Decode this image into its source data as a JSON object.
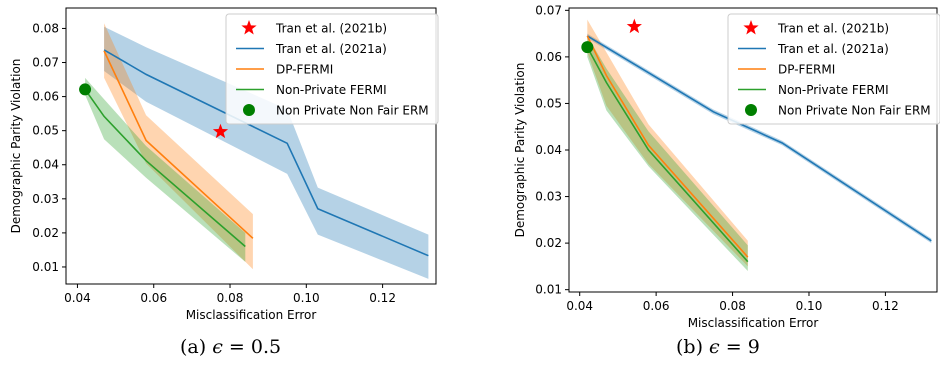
{
  "chart_data": [
    {
      "type": "line",
      "caption": {
        "label": "(a)",
        "param": "ϵ",
        "relation": "=",
        "value": "0.5"
      },
      "xlabel": "Misclassification Error",
      "ylabel": "Demographic Parity Violation",
      "xlim": [
        0.037,
        0.134
      ],
      "ylim": [
        0.005,
        0.086
      ],
      "xticks": [
        "0.04",
        "0.06",
        "0.08",
        "0.10",
        "0.12"
      ],
      "yticks": [
        "0.01",
        "0.02",
        "0.03",
        "0.04",
        "0.05",
        "0.06",
        "0.07",
        "0.08"
      ],
      "grid": false,
      "legend_position": "top-right",
      "series": [
        {
          "name": "Tran et al. (2021b)",
          "kind": "star",
          "color": "#ff0000",
          "x": [
            0.0775
          ],
          "y": [
            0.0497
          ]
        },
        {
          "name": "Tran et al. (2021a)",
          "kind": "line",
          "color": "#1f77b4",
          "x": [
            0.047,
            0.058,
            0.095,
            0.103,
            0.132
          ],
          "y": [
            0.0737,
            0.0665,
            0.0463,
            0.0271,
            0.0133
          ],
          "y_lower": [
            0.0675,
            0.0585,
            0.0373,
            0.0195,
            0.0065
          ],
          "y_upper": [
            0.0805,
            0.0745,
            0.0563,
            0.0333,
            0.0195
          ]
        },
        {
          "name": "DP-FERMI",
          "kind": "line",
          "color": "#ff7f0e",
          "x": [
            0.047,
            0.058,
            0.086
          ],
          "y": [
            0.0734,
            0.0471,
            0.0184
          ],
          "y_lower": [
            0.0655,
            0.0404,
            0.0093
          ],
          "y_upper": [
            0.0815,
            0.0545,
            0.0255
          ]
        },
        {
          "name": "Non-Private FERMI",
          "kind": "line",
          "color": "#2ca02c",
          "x": [
            0.042,
            0.047,
            0.058,
            0.084
          ],
          "y": [
            0.0621,
            0.0542,
            0.0412,
            0.016
          ],
          "y_lower": [
            0.0605,
            0.0475,
            0.0362,
            0.0115
          ],
          "y_upper": [
            0.0655,
            0.0592,
            0.0455,
            0.02
          ]
        },
        {
          "name": "Non Private Non Fair ERM",
          "kind": "dot",
          "color": "#007f00",
          "x": [
            0.042
          ],
          "y": [
            0.0621
          ]
        }
      ]
    },
    {
      "type": "line",
      "caption": {
        "label": "(b)",
        "param": "ϵ",
        "relation": "=",
        "value": "9"
      },
      "xlabel": "Misclassification Error",
      "ylabel": "Demographic Parity Violation",
      "xlim": [
        0.0372,
        0.1335
      ],
      "ylim": [
        0.0095,
        0.0705
      ],
      "xticks": [
        "0.04",
        "0.06",
        "0.08",
        "0.10",
        "0.12"
      ],
      "yticks": [
        "0.01",
        "0.02",
        "0.03",
        "0.04",
        "0.05",
        "0.06",
        "0.07"
      ],
      "grid": false,
      "legend_position": "top-right",
      "series": [
        {
          "name": "Tran et al. (2021b)",
          "kind": "star",
          "color": "#ff0000",
          "x": [
            0.0543
          ],
          "y": [
            0.0665
          ]
        },
        {
          "name": "Tran et al. (2021a)",
          "kind": "line",
          "color": "#1f77b4",
          "x": [
            0.042,
            0.075,
            0.093,
            0.132
          ],
          "y": [
            0.0645,
            0.0482,
            0.0415,
            0.0205
          ],
          "y_lower": [
            0.064,
            0.0477,
            0.041,
            0.02
          ],
          "y_upper": [
            0.065,
            0.0487,
            0.042,
            0.021
          ]
        },
        {
          "name": "DP-FERMI",
          "kind": "line",
          "color": "#ff7f0e",
          "x": [
            0.042,
            0.047,
            0.058,
            0.084
          ],
          "y": [
            0.0645,
            0.056,
            0.041,
            0.017
          ],
          "y_lower": [
            0.061,
            0.0495,
            0.037,
            0.015
          ],
          "y_upper": [
            0.068,
            0.061,
            0.0455,
            0.0205
          ]
        },
        {
          "name": "Non-Private FERMI",
          "kind": "line",
          "color": "#2ca02c",
          "x": [
            0.042,
            0.047,
            0.058,
            0.084
          ],
          "y": [
            0.0621,
            0.0545,
            0.04,
            0.016
          ],
          "y_lower": [
            0.06,
            0.0485,
            0.0365,
            0.014
          ],
          "y_upper": [
            0.0645,
            0.0575,
            0.044,
            0.0195
          ]
        },
        {
          "name": "Non Private Non Fair ERM",
          "kind": "dot",
          "color": "#007f00",
          "x": [
            0.042
          ],
          "y": [
            0.0621
          ]
        }
      ]
    }
  ]
}
